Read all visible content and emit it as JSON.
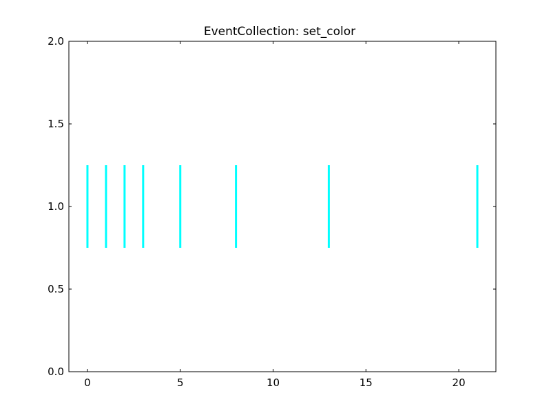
{
  "chart_data": {
    "type": "eventplot",
    "title": "EventCollection: set_color",
    "xlabel": "",
    "ylabel": "",
    "xlim": [
      -1,
      22
    ],
    "ylim": [
      0.0,
      2.0
    ],
    "x_ticks": [
      0,
      5,
      10,
      15,
      20
    ],
    "x_tick_labels": [
      "0",
      "5",
      "10",
      "15",
      "20"
    ],
    "y_ticks": [
      0.0,
      0.5,
      1.0,
      1.5,
      2.0
    ],
    "y_tick_labels": [
      "0.0",
      "0.5",
      "1.0",
      "1.5",
      "2.0"
    ],
    "grid": false,
    "series": [
      {
        "events": [
          0,
          1,
          2,
          3,
          5,
          8,
          13,
          21
        ],
        "line_offset": 1.0,
        "line_length": 0.5,
        "color": "#00ffff"
      }
    ]
  }
}
